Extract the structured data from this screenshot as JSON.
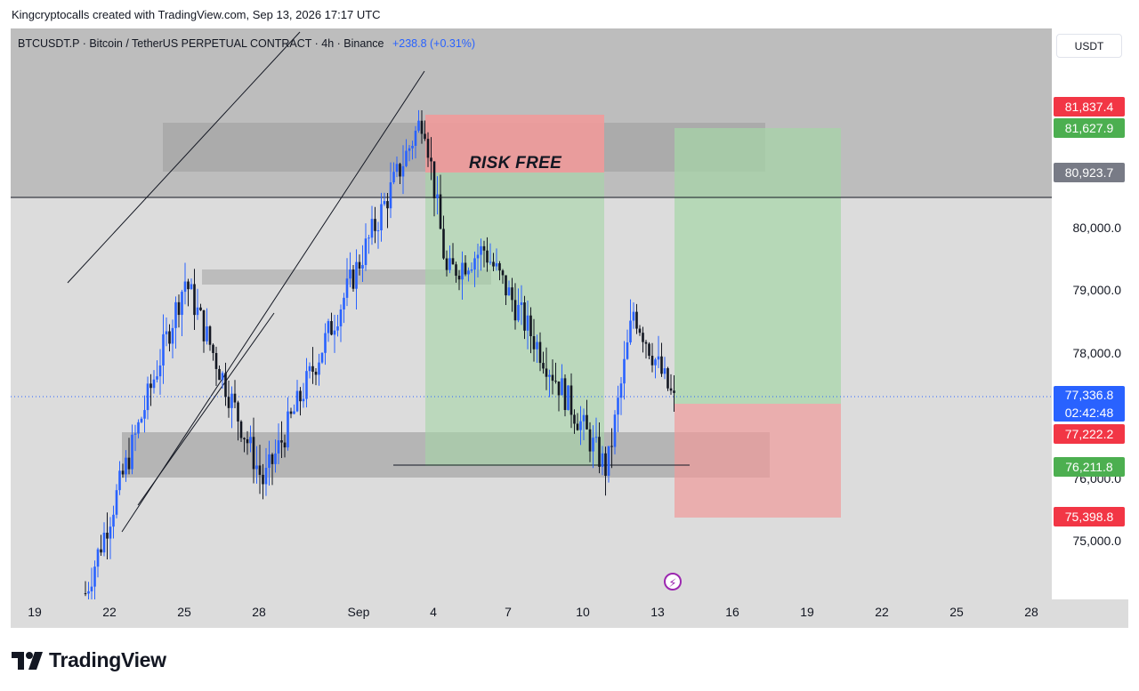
{
  "attribution": "Kingcryptocalls created with TradingView.com, Sep 13, 2026 17:17 UTC",
  "symbol": {
    "title": "BTCUSDT.P · Bitcoin / TetherUS PERPETUAL CONTRACT · 4h · Binance",
    "change": "+238.8 (+0.31%)"
  },
  "annotation": "RISK FREE",
  "currency": "USDT",
  "price_axis": {
    "ticks": [
      "80,000.0",
      "79,000.0",
      "78,000.0",
      "76,000.0",
      "75,000.0"
    ],
    "labels": {
      "stop_top": "81,837.4",
      "target": "81,627.9",
      "level": "80,923.7",
      "last_price": "77,336.8",
      "countdown": "02:42:48",
      "entry": "77,222.2",
      "support": "76,211.8",
      "stop": "75,398.8"
    }
  },
  "time_axis": [
    "19",
    "22",
    "25",
    "28",
    "Sep",
    "4",
    "7",
    "10",
    "13",
    "16",
    "19",
    "22",
    "25",
    "28"
  ],
  "colors": {
    "bull": "#2962ff",
    "bear": "#131722",
    "profit_zone": "#a5d6a7",
    "loss_zone": "#ef9a9a",
    "label_red": "#f23645",
    "label_green": "#4caf50",
    "label_blue": "#2962ff",
    "label_gray": "#787b86"
  },
  "icons": {
    "flash": "flash-icon",
    "logo": "tradingview-logo-icon"
  },
  "brand": "TradingView",
  "chart_data": {
    "type": "candlestick",
    "timeframe": "4h",
    "symbol": "BTCUSDT.P",
    "exchange": "Binance",
    "last_price": 77336.8,
    "ylim": [
      74200,
      83500
    ],
    "levels": {
      "horizontal_line": 80923.7,
      "entry": 77222.2,
      "target": 81627.9,
      "stop": 75398.8,
      "support": 76211.8,
      "prior_stop": 81837.4
    },
    "key_points": [
      {
        "date": "Aug 21",
        "price": 74300
      },
      {
        "date": "Aug 24",
        "price": 79400
      },
      {
        "date": "Aug 28",
        "price": 76100
      },
      {
        "date": "Sep 3",
        "price": 82100
      },
      {
        "date": "Sep 4",
        "price": 79500
      },
      {
        "date": "Sep 6",
        "price": 79900
      },
      {
        "date": "Sep 10",
        "price": 76300
      },
      {
        "date": "Sep 11",
        "price": 78900
      },
      {
        "date": "Sep 13",
        "price": 77336.8
      }
    ]
  }
}
